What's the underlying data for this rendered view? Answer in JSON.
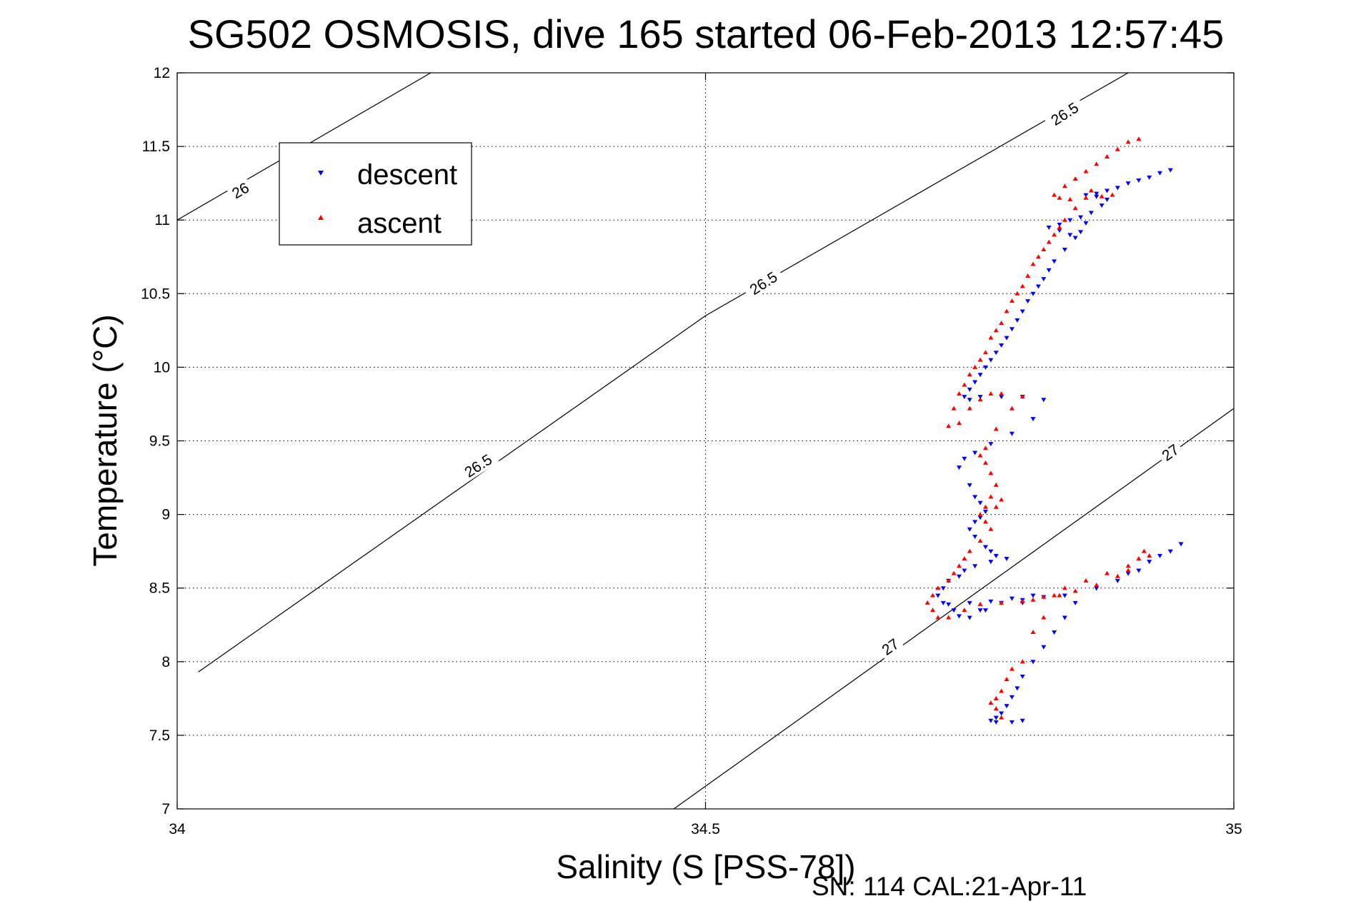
{
  "chart_data": {
    "type": "scatter",
    "title": "SG502 OSMOSIS, dive 165 started 06-Feb-2013 12:57:45",
    "xlabel": "Salinity (S [PSS-78])",
    "ylabel": "Temperature (°C)",
    "xlim": [
      34,
      35
    ],
    "ylim": [
      7,
      12
    ],
    "xticks": [
      34,
      34.5,
      35
    ],
    "xtick_labels": [
      "34",
      "34.5",
      "35"
    ],
    "yticks": [
      7,
      7.5,
      8,
      8.5,
      9,
      9.5,
      10,
      10.5,
      11,
      11.5,
      12
    ],
    "ytick_labels": [
      "7",
      "7.5",
      "8",
      "8.5",
      "9",
      "9.5",
      "10",
      "10.5",
      "11",
      "11.5",
      "12"
    ],
    "grid": true,
    "legend_position": "top-left",
    "footer_text": "SN: 114  CAL:21-Apr-11",
    "contours": [
      {
        "label": "26",
        "points": [
          [
            34.0,
            11.0
          ],
          [
            34.24,
            12.0
          ]
        ],
        "label_at": [
          34.06,
          11.2
        ]
      },
      {
        "label": "26.5",
        "points": [
          [
            34.02,
            7.93
          ],
          [
            34.5,
            10.35
          ],
          [
            34.9,
            12.0
          ]
        ],
        "label_at": [
          [
            34.285,
            9.33
          ],
          [
            34.555,
            10.57
          ],
          [
            34.84,
            11.72
          ]
        ]
      },
      {
        "label": "27",
        "points": [
          [
            34.47,
            7.0
          ],
          [
            35.0,
            9.72
          ]
        ],
        "label_at": [
          [
            34.675,
            8.1
          ],
          [
            34.94,
            9.42
          ]
        ]
      }
    ],
    "series": [
      {
        "name": "descent",
        "marker": "triangle-down",
        "color": "#0000ff",
        "x": [
          34.94,
          34.93,
          34.92,
          34.91,
          34.9,
          34.89,
          34.88,
          34.87,
          34.86,
          34.87,
          34.88,
          34.875,
          34.865,
          34.855,
          34.845,
          34.835,
          34.825,
          34.835,
          34.845,
          34.855,
          34.86,
          34.85,
          34.84,
          34.83,
          34.825,
          34.82,
          34.815,
          34.81,
          34.805,
          34.8,
          34.795,
          34.79,
          34.785,
          34.78,
          34.775,
          34.77,
          34.765,
          34.76,
          34.755,
          34.75,
          34.745,
          34.75,
          34.76,
          34.78,
          34.8,
          34.82,
          34.81,
          34.79,
          34.77,
          34.755,
          34.745,
          34.74,
          34.75,
          34.755,
          34.76,
          34.765,
          34.76,
          34.755,
          34.75,
          34.755,
          34.765,
          34.77,
          34.775,
          34.785,
          34.77,
          34.755,
          34.745,
          34.74,
          34.73,
          34.725,
          34.72,
          34.725,
          34.735,
          34.74,
          34.75,
          34.765,
          34.78,
          34.8,
          34.82,
          34.81,
          34.79,
          34.77,
          34.75,
          34.73,
          34.76,
          34.8,
          34.84,
          34.87,
          34.89,
          34.91,
          34.93,
          34.95,
          34.94,
          34.92,
          34.9,
          34.87,
          34.85,
          34.84,
          34.83,
          34.82,
          34.81,
          34.8,
          34.795,
          34.79,
          34.785,
          34.78,
          34.775,
          34.77,
          34.775,
          34.79,
          34.8
        ],
        "y": [
          11.34,
          11.32,
          11.29,
          11.27,
          11.25,
          11.22,
          11.2,
          11.18,
          11.17,
          11.16,
          11.14,
          11.1,
          11.05,
          11.02,
          11.0,
          10.97,
          10.95,
          10.93,
          10.9,
          10.92,
          10.98,
          10.88,
          10.8,
          10.72,
          10.66,
          10.6,
          10.55,
          10.5,
          10.45,
          10.38,
          10.32,
          10.26,
          10.2,
          10.15,
          10.1,
          10.05,
          10.0,
          9.95,
          9.9,
          9.85,
          9.8,
          9.78,
          9.8,
          9.8,
          9.8,
          9.78,
          9.65,
          9.55,
          9.48,
          9.42,
          9.38,
          9.32,
          9.2,
          9.12,
          9.08,
          9.02,
          8.98,
          8.95,
          8.9,
          8.85,
          8.78,
          8.75,
          8.72,
          8.7,
          8.68,
          8.65,
          8.62,
          8.58,
          8.55,
          8.5,
          8.45,
          8.4,
          8.35,
          8.31,
          8.3,
          8.35,
          8.4,
          8.42,
          8.44,
          8.45,
          8.43,
          8.41,
          8.4,
          8.39,
          8.35,
          8.4,
          8.45,
          8.5,
          8.55,
          8.62,
          8.72,
          8.8,
          8.75,
          8.68,
          8.6,
          8.5,
          8.4,
          8.3,
          8.2,
          8.1,
          8.0,
          7.9,
          7.82,
          7.76,
          7.7,
          7.65,
          7.62,
          7.6,
          7.59,
          7.59,
          7.6
        ]
      },
      {
        "name": "ascent",
        "marker": "triangle-up",
        "color": "#ff0000",
        "x": [
          34.91,
          34.9,
          34.89,
          34.88,
          34.87,
          34.86,
          34.85,
          34.84,
          34.83,
          34.835,
          34.845,
          34.86,
          34.875,
          34.885,
          34.865,
          34.85,
          34.84,
          34.835,
          34.83,
          34.825,
          34.82,
          34.815,
          34.81,
          34.805,
          34.8,
          34.795,
          34.79,
          34.785,
          34.78,
          34.775,
          34.77,
          34.765,
          34.76,
          34.755,
          34.75,
          34.745,
          34.74,
          34.735,
          34.73,
          34.74,
          34.75,
          34.76,
          34.77,
          34.78,
          34.8,
          34.79,
          34.775,
          34.765,
          34.76,
          34.765,
          34.77,
          34.775,
          34.77,
          34.765,
          34.76,
          34.765,
          34.775,
          34.78,
          34.77,
          34.76,
          34.75,
          34.745,
          34.74,
          34.735,
          34.73,
          34.72,
          34.715,
          34.71,
          34.715,
          34.72,
          34.73,
          34.745,
          34.76,
          34.78,
          34.8,
          34.81,
          34.82,
          34.835,
          34.85,
          34.87,
          34.89,
          34.9,
          34.91,
          34.915,
          34.92,
          34.9,
          34.88,
          34.86,
          34.84,
          34.83,
          34.82,
          34.81,
          34.8,
          34.79,
          34.785,
          34.78,
          34.775,
          34.77,
          34.775,
          34.78
        ],
        "y": [
          11.55,
          11.53,
          11.48,
          11.43,
          11.38,
          11.33,
          11.28,
          11.23,
          11.17,
          11.15,
          11.14,
          11.15,
          11.16,
          11.17,
          11.2,
          11.08,
          11.0,
          10.95,
          10.9,
          10.85,
          10.8,
          10.75,
          10.7,
          10.62,
          10.55,
          10.5,
          10.45,
          10.38,
          10.3,
          10.25,
          10.2,
          10.1,
          10.05,
          10.0,
          9.95,
          9.88,
          9.82,
          9.72,
          9.6,
          9.62,
          9.72,
          9.78,
          9.82,
          9.82,
          9.8,
          9.72,
          9.58,
          9.45,
          9.4,
          9.35,
          9.28,
          9.2,
          9.12,
          9.05,
          9.0,
          8.95,
          9.05,
          9.1,
          8.9,
          8.82,
          8.75,
          8.7,
          8.65,
          8.6,
          8.55,
          8.5,
          8.45,
          8.4,
          8.35,
          8.3,
          8.3,
          8.35,
          8.39,
          8.4,
          8.41,
          8.42,
          8.44,
          8.45,
          8.48,
          8.52,
          8.58,
          8.62,
          8.7,
          8.75,
          8.72,
          8.65,
          8.6,
          8.55,
          8.5,
          8.45,
          8.3,
          8.2,
          8.0,
          7.95,
          7.88,
          7.8,
          7.75,
          7.72,
          7.68,
          7.62
        ]
      }
    ]
  }
}
